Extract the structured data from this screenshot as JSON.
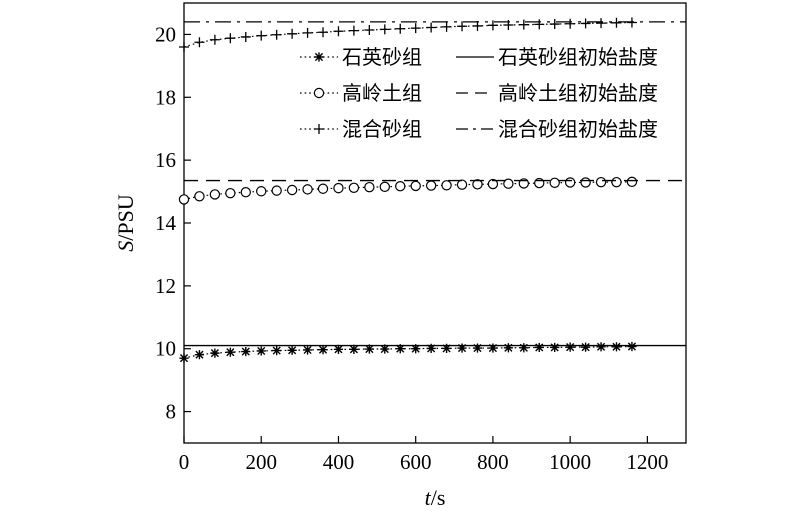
{
  "chart_data": {
    "type": "line",
    "title": "",
    "xlabel": {
      "italic": "t",
      "rest": "/s"
    },
    "ylabel": {
      "italic": "S",
      "rest": "/PSU"
    },
    "xlim": [
      0,
      1300
    ],
    "ylim": [
      7,
      21
    ],
    "xticks": [
      0,
      200,
      400,
      600,
      800,
      1000,
      1200
    ],
    "yticks": [
      8,
      10,
      12,
      14,
      16,
      18,
      20
    ],
    "grid": false,
    "legend_position": "top-right",
    "series": [
      {
        "name": "石英砂组",
        "marker": "asterisk",
        "color": "#000000",
        "x": [
          0,
          40,
          80,
          120,
          160,
          200,
          240,
          280,
          320,
          360,
          400,
          440,
          480,
          520,
          560,
          600,
          640,
          680,
          720,
          760,
          800,
          840,
          880,
          920,
          960,
          1000,
          1040,
          1080,
          1120,
          1160
        ],
        "y": [
          9.7,
          9.81,
          9.86,
          9.89,
          9.91,
          9.93,
          9.94,
          9.95,
          9.96,
          9.97,
          9.98,
          9.98,
          9.99,
          9.99,
          10.0,
          10.0,
          10.01,
          10.01,
          10.02,
          10.02,
          10.02,
          10.03,
          10.03,
          10.04,
          10.04,
          10.05,
          10.05,
          10.06,
          10.06,
          10.07
        ]
      },
      {
        "name": "石英砂组初始盐度",
        "line_style": "solid",
        "color": "#000000",
        "constant": 10.1
      },
      {
        "name": "高岭土组",
        "marker": "circle",
        "color": "#000000",
        "x": [
          0,
          40,
          80,
          120,
          160,
          200,
          240,
          280,
          320,
          360,
          400,
          440,
          480,
          520,
          560,
          600,
          640,
          680,
          720,
          760,
          800,
          840,
          880,
          920,
          960,
          1000,
          1040,
          1080,
          1120,
          1160
        ],
        "y": [
          14.75,
          14.85,
          14.91,
          14.95,
          14.98,
          15.01,
          15.03,
          15.05,
          15.07,
          15.09,
          15.11,
          15.12,
          15.14,
          15.15,
          15.17,
          15.18,
          15.19,
          15.2,
          15.22,
          15.23,
          15.24,
          15.25,
          15.26,
          15.27,
          15.28,
          15.29,
          15.29,
          15.3,
          15.3,
          15.31
        ]
      },
      {
        "name": "高岭土组初始盐度",
        "line_style": "dashed",
        "color": "#000000",
        "constant": 15.35
      },
      {
        "name": "混合砂组",
        "marker": "plus",
        "color": "#000000",
        "x": [
          0,
          40,
          80,
          120,
          160,
          200,
          240,
          280,
          320,
          360,
          400,
          440,
          480,
          520,
          560,
          600,
          640,
          680,
          720,
          760,
          800,
          840,
          880,
          920,
          960,
          1000,
          1040,
          1080,
          1120,
          1160
        ],
        "y": [
          19.6,
          19.75,
          19.83,
          19.88,
          19.92,
          19.96,
          19.99,
          20.02,
          20.05,
          20.07,
          20.1,
          20.12,
          20.14,
          20.16,
          20.18,
          20.2,
          20.22,
          20.24,
          20.26,
          20.27,
          20.29,
          20.3,
          20.31,
          20.32,
          20.33,
          20.34,
          20.35,
          20.36,
          20.37,
          20.38
        ]
      },
      {
        "name": "混合砂组初始盐度",
        "line_style": "dash-dot",
        "color": "#000000",
        "constant": 20.4
      }
    ]
  }
}
